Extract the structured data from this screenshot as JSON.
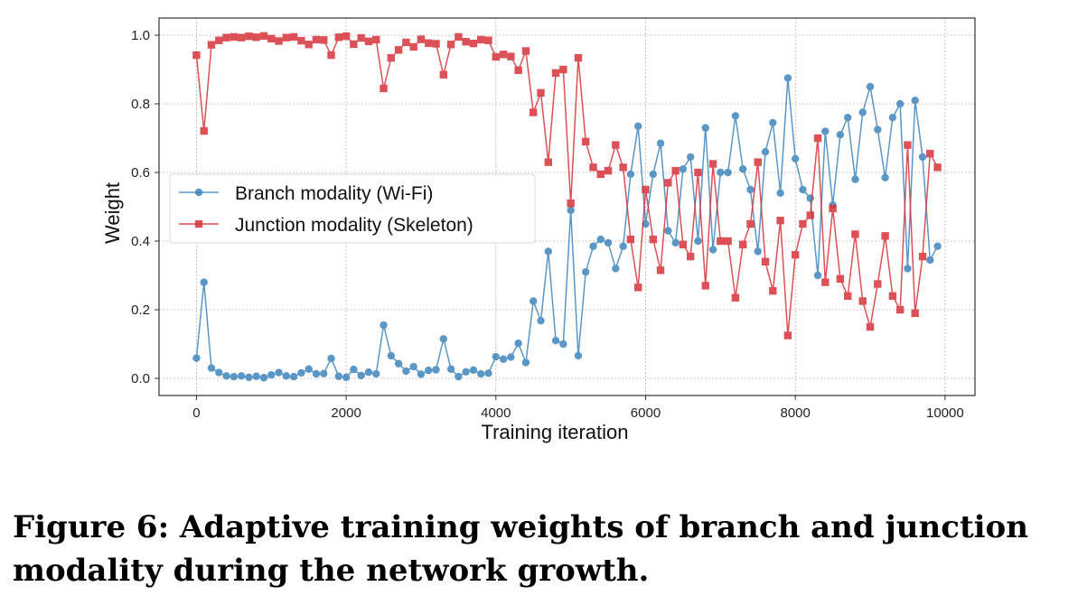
{
  "caption": "Figure 6: Adaptive training weights of branch and junction modality during the network growth.",
  "chart_data": {
    "type": "line",
    "xlabel": "Training iteration",
    "ylabel": "Weight",
    "xlim": [
      -500,
      10400
    ],
    "ylim": [
      -0.05,
      1.05
    ],
    "xticks": [
      0,
      2000,
      4000,
      6000,
      8000,
      10000
    ],
    "yticks": [
      0.0,
      0.2,
      0.4,
      0.6,
      0.8,
      1.0
    ],
    "grid": true,
    "legend_position": "center-left",
    "x": [
      0,
      100,
      200,
      300,
      400,
      500,
      600,
      700,
      800,
      900,
      1000,
      1100,
      1200,
      1300,
      1400,
      1500,
      1600,
      1700,
      1800,
      1900,
      2000,
      2100,
      2200,
      2300,
      2400,
      2500,
      2600,
      2700,
      2800,
      2900,
      3000,
      3100,
      3200,
      3300,
      3400,
      3500,
      3600,
      3700,
      3800,
      3900,
      4000,
      4100,
      4200,
      4300,
      4400,
      4500,
      4600,
      4700,
      4800,
      4900,
      5000,
      5100,
      5200,
      5300,
      5400,
      5500,
      5600,
      5700,
      5800,
      5900,
      6000,
      6100,
      6200,
      6300,
      6400,
      6500,
      6600,
      6700,
      6800,
      6900,
      7000,
      7100,
      7200,
      7300,
      7400,
      7500,
      7600,
      7700,
      7800,
      7900,
      8000,
      8100,
      8200,
      8300,
      8400,
      8500,
      8600,
      8700,
      8800,
      8900,
      9000,
      9100,
      9200,
      9300,
      9400,
      9500,
      9600,
      9700,
      9800,
      9900
    ],
    "series": [
      {
        "name": "Branch modality (Wi-Fi)",
        "color": "#3f86bd",
        "marker": "circle",
        "values": [
          0.059,
          0.28,
          0.03,
          0.017,
          0.007,
          0.005,
          0.007,
          0.003,
          0.006,
          0.002,
          0.01,
          0.017,
          0.007,
          0.005,
          0.016,
          0.027,
          0.013,
          0.014,
          0.058,
          0.006,
          0.003,
          0.026,
          0.008,
          0.018,
          0.013,
          0.155,
          0.066,
          0.043,
          0.021,
          0.034,
          0.012,
          0.023,
          0.025,
          0.115,
          0.027,
          0.005,
          0.019,
          0.024,
          0.013,
          0.015,
          0.063,
          0.056,
          0.062,
          0.102,
          0.046,
          0.225,
          0.168,
          0.37,
          0.11,
          0.1,
          0.49,
          0.066,
          0.31,
          0.385,
          0.405,
          0.395,
          0.32,
          0.385,
          0.595,
          0.735,
          0.45,
          0.595,
          0.685,
          0.43,
          0.395,
          0.61,
          0.645,
          0.4,
          0.73,
          0.375,
          0.6,
          0.6,
          0.765,
          0.61,
          0.55,
          0.37,
          0.66,
          0.745,
          0.54,
          0.875,
          0.64,
          0.55,
          0.525,
          0.3,
          0.72,
          0.505,
          0.71,
          0.76,
          0.58,
          0.775,
          0.85,
          0.725,
          0.585,
          0.76,
          0.8,
          0.32,
          0.81,
          0.645,
          0.345,
          0.385
        ]
      },
      {
        "name": "Junction modality (Skeleton)",
        "color": "#d7333a",
        "marker": "square",
        "values": [
          0.942,
          0.721,
          0.972,
          0.985,
          0.993,
          0.995,
          0.993,
          0.997,
          0.994,
          0.998,
          0.99,
          0.983,
          0.993,
          0.995,
          0.984,
          0.973,
          0.987,
          0.986,
          0.942,
          0.994,
          0.997,
          0.974,
          0.992,
          0.982,
          0.987,
          0.845,
          0.934,
          0.957,
          0.979,
          0.966,
          0.988,
          0.977,
          0.975,
          0.885,
          0.973,
          0.995,
          0.981,
          0.976,
          0.987,
          0.985,
          0.937,
          0.944,
          0.938,
          0.898,
          0.954,
          0.775,
          0.832,
          0.63,
          0.89,
          0.9,
          0.51,
          0.934,
          0.69,
          0.615,
          0.595,
          0.605,
          0.68,
          0.615,
          0.405,
          0.265,
          0.55,
          0.405,
          0.315,
          0.57,
          0.605,
          0.39,
          0.355,
          0.6,
          0.27,
          0.625,
          0.4,
          0.4,
          0.235,
          0.39,
          0.45,
          0.63,
          0.34,
          0.255,
          0.46,
          0.125,
          0.36,
          0.45,
          0.475,
          0.7,
          0.28,
          0.495,
          0.29,
          0.24,
          0.42,
          0.225,
          0.15,
          0.275,
          0.415,
          0.24,
          0.2,
          0.68,
          0.19,
          0.355,
          0.655,
          0.615
        ]
      }
    ]
  }
}
